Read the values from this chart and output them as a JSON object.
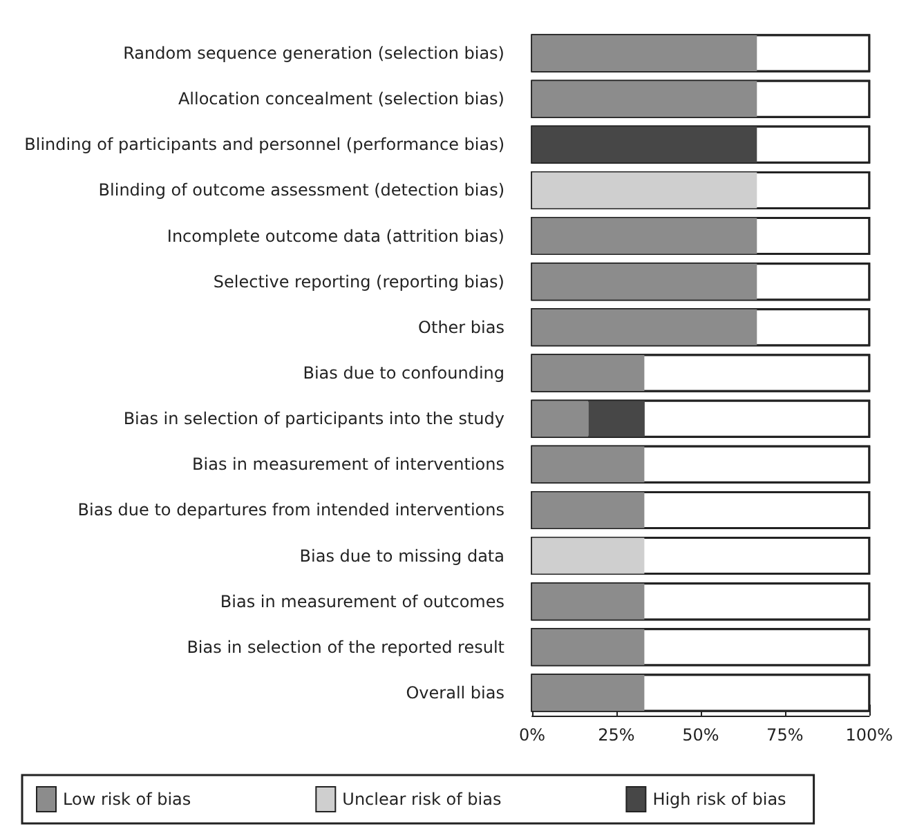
{
  "chart_data": {
    "type": "bar",
    "orientation": "horizontal",
    "stacked": true,
    "categories": [
      "Random sequence generation (selection bias)",
      "Allocation concealment (selection bias)",
      "Blinding of participants and personnel (performance bias)",
      "Blinding of outcome assessment (detection bias)",
      "Incomplete outcome data (attrition bias)",
      "Selective reporting (reporting bias)",
      "Other bias",
      "Bias due to confounding",
      "Bias in selection of participants into the study",
      "Bias in measurement of interventions",
      "Bias due to departures from intended interventions",
      "Bias due to missing data",
      "Bias in measurement of outcomes",
      "Bias in selection of the reported result",
      "Overall bias"
    ],
    "series": [
      {
        "name": "Low risk of bias",
        "color": "#8c8c8c",
        "values": [
          66.7,
          66.7,
          null,
          null,
          66.7,
          66.7,
          66.7,
          33.3,
          16.7,
          33.3,
          33.3,
          null,
          33.3,
          33.3,
          33.3
        ]
      },
      {
        "name": "Unclear risk of bias",
        "color": "#cfcfcf",
        "values": [
          null,
          null,
          null,
          66.7,
          null,
          null,
          null,
          null,
          null,
          null,
          null,
          33.3,
          null,
          null,
          null
        ]
      },
      {
        "name": "High risk of bias",
        "color": "#474747",
        "values": [
          null,
          null,
          66.7,
          null,
          null,
          null,
          null,
          null,
          16.7,
          null,
          null,
          null,
          null,
          null,
          null
        ]
      }
    ],
    "xlim": [
      0,
      100
    ],
    "xticks": [
      {
        "value": 0,
        "label": "0%"
      },
      {
        "value": 25,
        "label": "25%"
      },
      {
        "value": 50,
        "label": "50%"
      },
      {
        "value": 75,
        "label": "75%"
      },
      {
        "value": 100,
        "label": "100%"
      }
    ],
    "grid": false,
    "legend": "bottom"
  }
}
